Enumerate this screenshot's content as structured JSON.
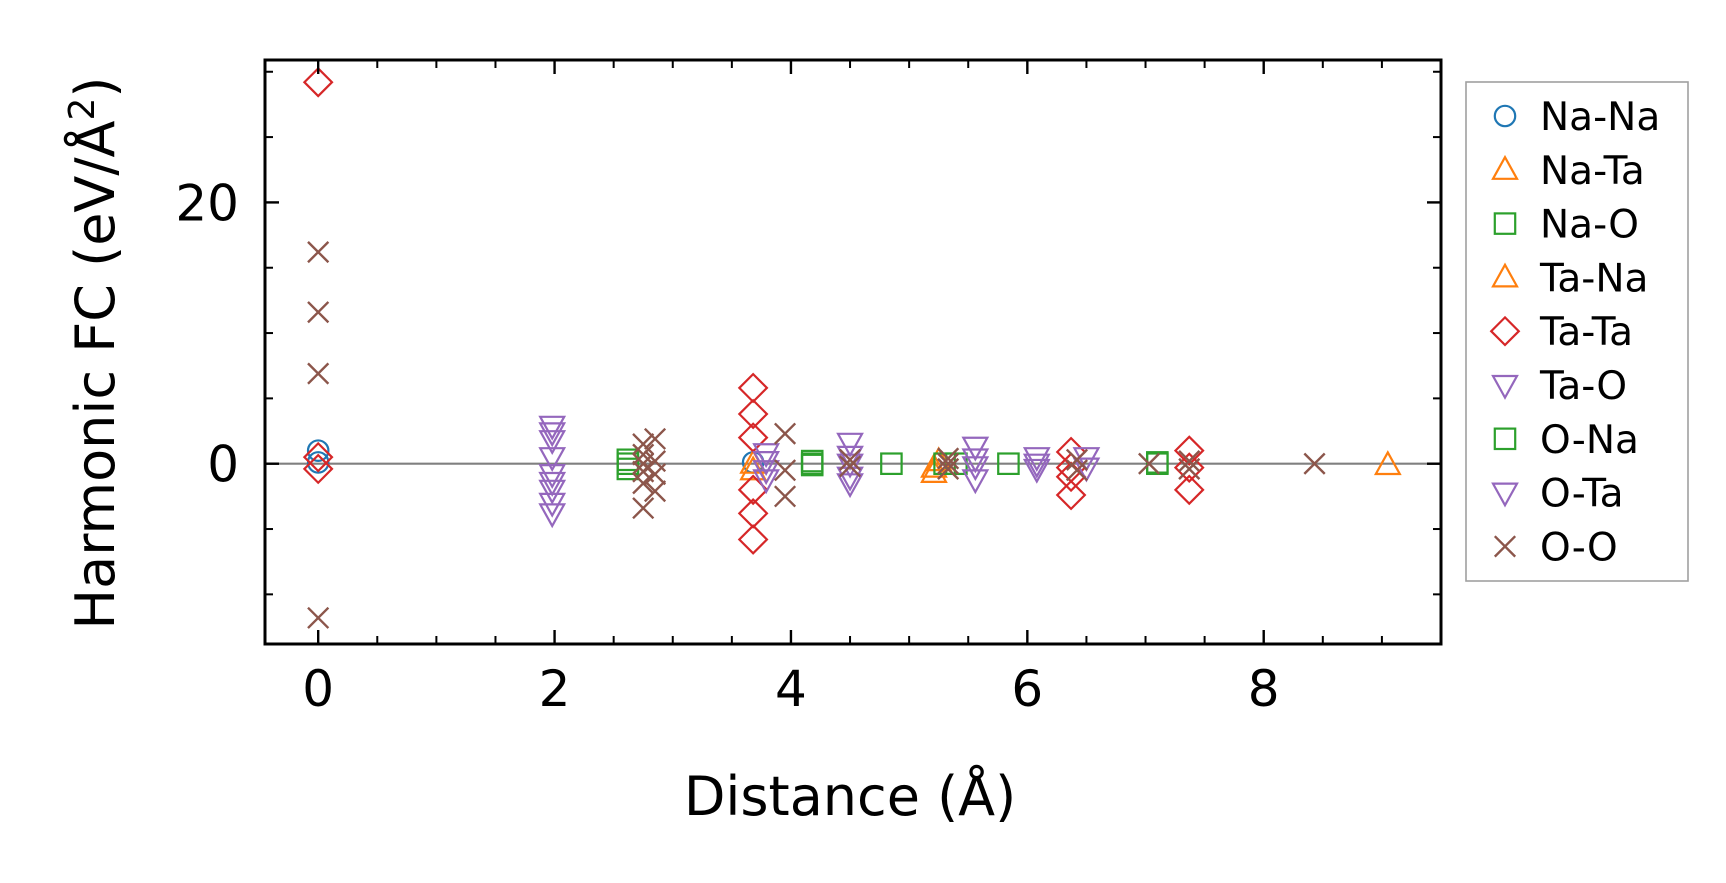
{
  "chart_data": {
    "type": "scatter",
    "title": "",
    "xlabel": "Distance (Å)",
    "ylabel_main": "Harmonic FC (eV/Å",
    "ylabel_sup": "2",
    "ylabel_tail": ")",
    "xlim": [
      -0.45,
      9.5
    ],
    "ylim": [
      -13.8,
      30.9
    ],
    "xticks": [
      0,
      2,
      4,
      6,
      8
    ],
    "xtick_labels": [
      "0",
      "2",
      "4",
      "6",
      "8"
    ],
    "yticks": [
      0,
      20
    ],
    "ytick_labels": [
      "0",
      "20"
    ],
    "x_minor_step": 0.5,
    "y_minor_step": 5,
    "zero_line": true,
    "grid": false,
    "legend_position": "outside-right",
    "series": [
      {
        "name": "Na-Na",
        "marker": "circle",
        "color": "#1f77b4",
        "points": [
          [
            0,
            1.0
          ],
          [
            0,
            0.1
          ],
          [
            3.68,
            0.1
          ]
        ]
      },
      {
        "name": "Na-Ta",
        "marker": "triangle-up",
        "color": "#ff7f0e",
        "points": [
          [
            3.68,
            0.0
          ],
          [
            5.21,
            -0.7
          ],
          [
            9.05,
            -0.1
          ]
        ]
      },
      {
        "name": "Na-O",
        "marker": "square",
        "color": "#2ca02c",
        "points": [
          [
            2.62,
            0.3
          ],
          [
            2.62,
            -0.4
          ],
          [
            4.18,
            0.0
          ],
          [
            4.18,
            -0.1
          ],
          [
            4.85,
            0.0
          ],
          [
            5.4,
            0.0
          ],
          [
            5.84,
            0.0
          ],
          [
            7.1,
            0.0
          ]
        ]
      },
      {
        "name": "Ta-Na",
        "marker": "triangle-up",
        "color": "#ff7f0e",
        "points": [
          [
            3.68,
            -0.5
          ],
          [
            5.21,
            -0.3
          ],
          [
            5.25,
            0.2
          ]
        ]
      },
      {
        "name": "Ta-Ta",
        "marker": "diamond",
        "color": "#d62728",
        "points": [
          [
            0,
            29.2
          ],
          [
            0,
            0.5
          ],
          [
            0,
            -0.4
          ],
          [
            3.68,
            5.8
          ],
          [
            3.68,
            3.8
          ],
          [
            3.68,
            2.0
          ],
          [
            3.68,
            -2.0
          ],
          [
            3.68,
            -3.8
          ],
          [
            3.68,
            -5.8
          ],
          [
            6.37,
            0.9
          ],
          [
            6.37,
            -0.3
          ],
          [
            6.37,
            -1.0
          ],
          [
            6.37,
            -2.4
          ],
          [
            7.37,
            1.0
          ],
          [
            7.37,
            -0.3
          ],
          [
            7.37,
            -2.0
          ]
        ]
      },
      {
        "name": "Ta-O",
        "marker": "triangle-down",
        "color": "#9467bd",
        "points": [
          [
            1.98,
            2.9
          ],
          [
            1.98,
            1.8
          ],
          [
            1.98,
            0.5
          ],
          [
            1.98,
            -0.8
          ],
          [
            1.98,
            -2.0
          ],
          [
            1.98,
            -3.0
          ],
          [
            1.98,
            -3.8
          ],
          [
            3.79,
            0.8
          ],
          [
            3.79,
            -0.5
          ],
          [
            3.79,
            -1.2
          ],
          [
            4.5,
            1.6
          ],
          [
            4.5,
            0.6
          ],
          [
            4.5,
            -1.0
          ],
          [
            5.56,
            1.3
          ],
          [
            5.56,
            -0.2
          ],
          [
            5.56,
            -1.2
          ],
          [
            6.08,
            0.5
          ],
          [
            6.08,
            -0.4
          ],
          [
            6.5,
            0.5
          ],
          [
            6.5,
            -0.3
          ]
        ]
      },
      {
        "name": "O-Na",
        "marker": "square",
        "color": "#2ca02c",
        "points": [
          [
            2.62,
            0.0
          ],
          [
            4.18,
            0.2
          ],
          [
            5.3,
            0.0
          ],
          [
            7.1,
            0.1
          ]
        ]
      },
      {
        "name": "O-Ta",
        "marker": "triangle-down",
        "color": "#9467bd",
        "points": [
          [
            1.98,
            2.4
          ],
          [
            1.98,
            -1.4
          ],
          [
            3.79,
            0.2
          ],
          [
            4.5,
            0.0
          ],
          [
            4.5,
            -1.5
          ],
          [
            5.56,
            0.4
          ],
          [
            6.08,
            0.0
          ]
        ]
      },
      {
        "name": "O-O",
        "marker": "x",
        "color": "#8c564b",
        "points": [
          [
            0,
            16.2
          ],
          [
            0,
            11.6
          ],
          [
            0,
            6.9
          ],
          [
            0,
            -11.8
          ],
          [
            2.75,
            1.5
          ],
          [
            2.75,
            0.7
          ],
          [
            2.75,
            0.0
          ],
          [
            2.75,
            -0.6
          ],
          [
            2.75,
            -1.5
          ],
          [
            2.75,
            -3.4
          ],
          [
            2.85,
            1.9
          ],
          [
            2.85,
            0.2
          ],
          [
            2.85,
            -0.8
          ],
          [
            2.85,
            -2.1
          ],
          [
            3.95,
            2.3
          ],
          [
            3.95,
            -0.5
          ],
          [
            3.95,
            -2.5
          ],
          [
            4.5,
            0.3
          ],
          [
            4.5,
            -0.2
          ],
          [
            5.33,
            0.4
          ],
          [
            5.33,
            0.0
          ],
          [
            5.33,
            -0.4
          ],
          [
            6.42,
            0.3
          ],
          [
            6.42,
            -0.5
          ],
          [
            7.03,
            0.0
          ],
          [
            7.37,
            0.2
          ],
          [
            7.37,
            -0.4
          ],
          [
            8.43,
            0.0
          ]
        ]
      }
    ]
  }
}
